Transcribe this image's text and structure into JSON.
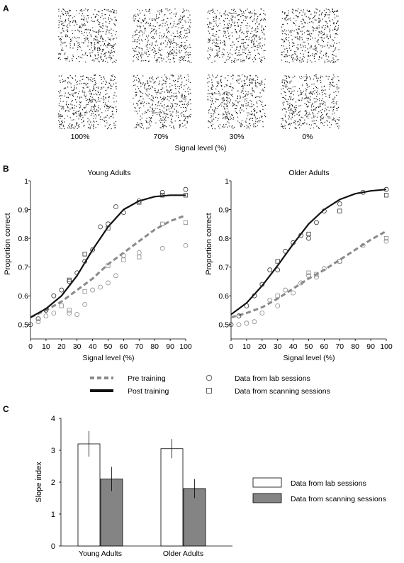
{
  "panels": {
    "a": {
      "label": "A",
      "signal_levels": [
        "100%",
        "70%",
        "30%",
        "0%"
      ],
      "xlabel": "Signal level (%)"
    },
    "b": {
      "label": "B"
    },
    "c": {
      "label": "C"
    }
  },
  "chart_data": [
    {
      "type": "line",
      "title": "Young Adults",
      "xlabel": "Signal level (%)",
      "ylabel": "Proportion correct",
      "xlim": [
        0,
        100
      ],
      "ylim": [
        0.45,
        1.0
      ],
      "xticks": [
        0,
        10,
        20,
        30,
        40,
        50,
        60,
        70,
        80,
        90,
        100
      ],
      "yticks": [
        0.5,
        0.6,
        0.7,
        0.8,
        0.9,
        1
      ],
      "ytick_labels": [
        "0.5",
        "0.6",
        "0.7",
        "0.8",
        "0.9",
        "1"
      ],
      "curves": {
        "pre": {
          "x": [
            0,
            10,
            20,
            30,
            40,
            50,
            60,
            70,
            80,
            90,
            100
          ],
          "y": [
            0.525,
            0.55,
            0.58,
            0.62,
            0.66,
            0.71,
            0.75,
            0.79,
            0.83,
            0.86,
            0.88
          ]
        },
        "post": {
          "x": [
            0,
            10,
            20,
            30,
            40,
            50,
            60,
            70,
            80,
            90,
            100
          ],
          "y": [
            0.525,
            0.555,
            0.6,
            0.67,
            0.76,
            0.84,
            0.9,
            0.93,
            0.945,
            0.95,
            0.95
          ]
        }
      },
      "points": {
        "lab_post": {
          "x": [
            0,
            5,
            10,
            15,
            20,
            25,
            30,
            35,
            40,
            45,
            50,
            55,
            60,
            70,
            85,
            100
          ],
          "y": [
            0.5,
            0.52,
            0.55,
            0.6,
            0.62,
            0.65,
            0.68,
            0.72,
            0.76,
            0.84,
            0.85,
            0.91,
            0.89,
            0.93,
            0.96,
            0.97
          ]
        },
        "scan_post": {
          "x": [
            25,
            35,
            50,
            70,
            85,
            100
          ],
          "y": [
            0.655,
            0.745,
            0.835,
            0.925,
            0.95,
            0.95
          ]
        },
        "lab_pre": {
          "x": [
            5,
            10,
            15,
            25,
            30,
            35,
            40,
            45,
            50,
            55,
            60,
            70,
            85,
            100
          ],
          "y": [
            0.51,
            0.53,
            0.54,
            0.54,
            0.535,
            0.57,
            0.62,
            0.63,
            0.645,
            0.67,
            0.74,
            0.75,
            0.765,
            0.775
          ]
        },
        "scan_pre": {
          "x": [
            20,
            25,
            35,
            50,
            60,
            70,
            85,
            100
          ],
          "y": [
            0.565,
            0.55,
            0.615,
            0.705,
            0.725,
            0.735,
            0.85,
            0.855
          ]
        }
      }
    },
    {
      "type": "line",
      "title": "Older Adults",
      "xlabel": "Signal level (%)",
      "ylabel": "Proportion correct",
      "xlim": [
        0,
        100
      ],
      "ylim": [
        0.45,
        1.0
      ],
      "xticks": [
        0,
        10,
        20,
        30,
        40,
        50,
        60,
        70,
        80,
        90,
        100
      ],
      "yticks": [
        0.5,
        0.6,
        0.7,
        0.8,
        0.9,
        1
      ],
      "ytick_labels": [
        "0.5",
        "0.6",
        "0.7",
        "0.8",
        "0.9",
        "1"
      ],
      "curves": {
        "pre": {
          "x": [
            0,
            10,
            20,
            30,
            40,
            50,
            60,
            70,
            80,
            90,
            100
          ],
          "y": [
            0.525,
            0.54,
            0.56,
            0.59,
            0.625,
            0.66,
            0.69,
            0.725,
            0.76,
            0.795,
            0.825
          ]
        },
        "post": {
          "x": [
            0,
            10,
            20,
            30,
            40,
            50,
            60,
            70,
            80,
            90,
            100
          ],
          "y": [
            0.535,
            0.575,
            0.635,
            0.705,
            0.78,
            0.85,
            0.9,
            0.935,
            0.955,
            0.965,
            0.97
          ]
        }
      },
      "points": {
        "lab_post": {
          "x": [
            0,
            5,
            10,
            15,
            20,
            25,
            30,
            35,
            40,
            45,
            50,
            55,
            60,
            70,
            85,
            100
          ],
          "y": [
            0.5,
            0.53,
            0.565,
            0.6,
            0.64,
            0.69,
            0.69,
            0.755,
            0.785,
            0.81,
            0.8,
            0.855,
            0.895,
            0.92,
            0.96,
            0.97
          ]
        },
        "scan_post": {
          "x": [
            30,
            50,
            70,
            100
          ],
          "y": [
            0.72,
            0.815,
            0.895,
            0.95
          ]
        },
        "lab_pre": {
          "x": [
            5,
            10,
            15,
            20,
            25,
            30,
            35,
            40,
            45,
            50,
            55,
            60,
            70,
            85,
            100
          ],
          "y": [
            0.5,
            0.505,
            0.51,
            0.54,
            0.585,
            0.565,
            0.62,
            0.61,
            0.645,
            0.67,
            0.665,
            0.695,
            0.72,
            0.775,
            0.79
          ]
        },
        "scan_pre": {
          "x": [
            30,
            50,
            55,
            70,
            100
          ],
          "y": [
            0.6,
            0.68,
            0.675,
            0.72,
            0.8
          ]
        }
      }
    },
    {
      "type": "bar",
      "categories": [
        "Young Adults",
        "Older Adults"
      ],
      "ylabel": "Slope index",
      "ylim": [
        0,
        4
      ],
      "yticks": [
        0,
        1,
        2,
        3,
        4
      ],
      "series": [
        {
          "name": "Data from lab sessions",
          "color": "#ffffff",
          "values": [
            3.2,
            3.05
          ],
          "errors": [
            0.4,
            0.3
          ]
        },
        {
          "name": "Data from scanning sessions",
          "color": "#848484",
          "values": [
            2.1,
            1.8
          ],
          "errors": [
            0.38,
            0.3
          ]
        }
      ],
      "legend_position": "right"
    }
  ],
  "legend_b": {
    "pre_label": "Pre training",
    "post_label": "Post training",
    "lab_label": "Data from lab sessions",
    "scan_label": "Data from scanning sessions"
  },
  "colors": {
    "pre_curve": "#8a8a8a",
    "post_curve": "#111111",
    "points": "#555555",
    "bar_lab": "#ffffff",
    "bar_scan": "#848484"
  }
}
